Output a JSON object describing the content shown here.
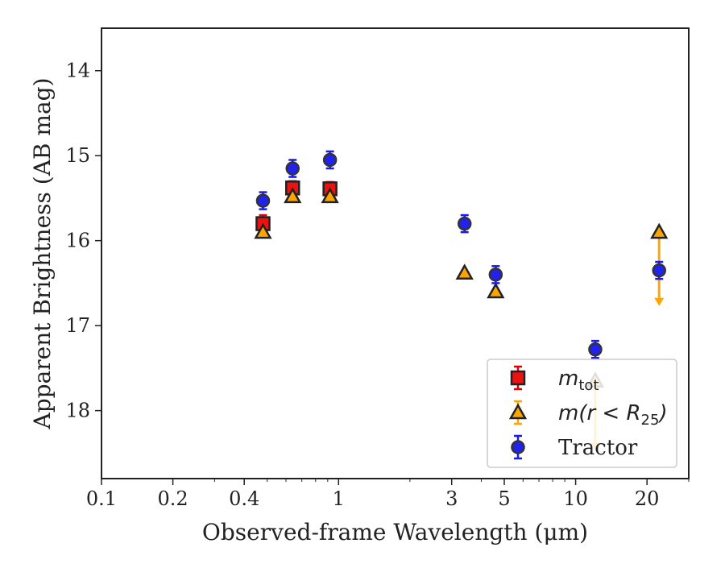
{
  "chart_data": {
    "type": "scatter",
    "xlabel": "Observed-frame Wavelength (μm)",
    "ylabel": "Apparent Brightness (AB mag)",
    "x_scale": "log",
    "y_inverted": true,
    "xlim": [
      0.1,
      30
    ],
    "ylim": [
      13.5,
      18.8
    ],
    "x_ticks": [
      {
        "value": 0.1,
        "label": "0.1"
      },
      {
        "value": 0.2,
        "label": "0.2"
      },
      {
        "value": 0.4,
        "label": "0.4"
      },
      {
        "value": 1,
        "label": "1"
      },
      {
        "value": 3,
        "label": "3"
      },
      {
        "value": 5,
        "label": "5"
      },
      {
        "value": 10,
        "label": "10"
      },
      {
        "value": 20,
        "label": "20"
      }
    ],
    "y_ticks": [
      {
        "value": 14,
        "label": "14"
      },
      {
        "value": 15,
        "label": "15"
      },
      {
        "value": 16,
        "label": "16"
      },
      {
        "value": 17,
        "label": "17"
      },
      {
        "value": 18,
        "label": "18"
      }
    ],
    "grid": false,
    "legend_position": "lower-right",
    "series": [
      {
        "name": "m_tot",
        "legend_base": "m",
        "legend_sub": "tot",
        "marker": "square",
        "color": "#ee1111",
        "edge_color": "#222222",
        "error_color": "#dd0000",
        "points": [
          {
            "x": 0.48,
            "y": 15.8,
            "err": 0.1
          },
          {
            "x": 0.64,
            "y": 15.38,
            "err": 0.08
          },
          {
            "x": 0.92,
            "y": 15.39,
            "err": 0.08
          }
        ]
      },
      {
        "name": "m(r < R_25)",
        "legend_base": "m(r < R",
        "legend_sub": "25",
        "legend_close": ")",
        "marker": "triangle",
        "color": "#ffa500",
        "edge_color": "#222222",
        "error_color": "#ffa500",
        "points": [
          {
            "x": 0.48,
            "y": 15.9
          },
          {
            "x": 0.64,
            "y": 15.48
          },
          {
            "x": 0.92,
            "y": 15.48
          },
          {
            "x": 3.4,
            "y": 16.38
          },
          {
            "x": 4.6,
            "y": 16.6
          },
          {
            "x": 12.1,
            "y": 17.65,
            "upper_limit_to": 18.45
          },
          {
            "x": 22.5,
            "y": 15.9,
            "upper_limit_to": 16.75
          }
        ]
      },
      {
        "name": "Tractor",
        "legend_base": "Tractor",
        "marker": "circle",
        "color": "#2222ee",
        "edge_color": "#333333",
        "error_color": "#1a1aee",
        "points": [
          {
            "x": 0.48,
            "y": 15.53,
            "err": 0.1
          },
          {
            "x": 0.64,
            "y": 15.15,
            "err": 0.1
          },
          {
            "x": 0.92,
            "y": 15.05,
            "err": 0.1
          },
          {
            "x": 3.4,
            "y": 15.8,
            "err": 0.1
          },
          {
            "x": 4.6,
            "y": 16.4,
            "err": 0.1
          },
          {
            "x": 12.1,
            "y": 17.28,
            "err": 0.1
          },
          {
            "x": 22.5,
            "y": 16.35,
            "err": 0.1
          }
        ]
      }
    ]
  }
}
